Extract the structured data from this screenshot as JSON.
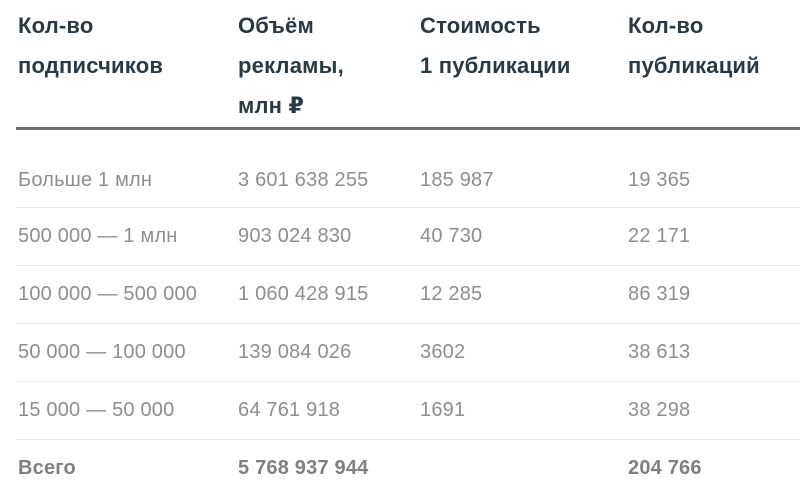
{
  "table": {
    "columns": [
      {
        "label": "Кол-во\nподписчиков"
      },
      {
        "label": "Объём\nрекламы,\nмлн ₽"
      },
      {
        "label": "Стоимость\n1 публикации"
      },
      {
        "label": "Кол-во\nпубликаций"
      }
    ],
    "rows": [
      [
        "Больше 1 млн",
        "3 601 638 255",
        "185 987",
        "19 365"
      ],
      [
        "500 000 — 1 млн",
        "903 024 830",
        "40 730",
        "22 171"
      ],
      [
        "100 000 — 500 000",
        "1 060 428 915",
        "12 285",
        "86 319"
      ],
      [
        "50 000 — 100 000",
        "139 084 026",
        "3602",
        "38 613"
      ],
      [
        "15 000 — 50 000",
        "64 761 918",
        "1691",
        "38 298"
      ]
    ],
    "total": [
      "Всего",
      "5 768 937 944",
      "",
      "204 766"
    ]
  },
  "chart_data": {
    "type": "table",
    "title": "",
    "columns": [
      "Кол-во подписчиков",
      "Объём рекламы, млн ₽",
      "Стоимость 1 публикации",
      "Кол-во публикаций"
    ],
    "rows": [
      {
        "subscribers": "Больше 1 млн",
        "ad_volume": 3601638255,
        "cost_per_publication": 185987,
        "publications": 19365
      },
      {
        "subscribers": "500 000 — 1 млн",
        "ad_volume": 903024830,
        "cost_per_publication": 40730,
        "publications": 22171
      },
      {
        "subscribers": "100 000 — 500 000",
        "ad_volume": 1060428915,
        "cost_per_publication": 12285,
        "publications": 86319
      },
      {
        "subscribers": "50 000 — 100 000",
        "ad_volume": 139084026,
        "cost_per_publication": 3602,
        "publications": 38613
      },
      {
        "subscribers": "15 000 — 50 000",
        "ad_volume": 64761918,
        "cost_per_publication": 1691,
        "publications": 38298
      }
    ],
    "total": {
      "label": "Всего",
      "ad_volume": 5768937944,
      "cost_per_publication": null,
      "publications": 204766
    }
  },
  "colors": {
    "header_text": "#2b3944",
    "data_text": "#8e8e8e",
    "total_text": "#808080",
    "header_rule": "#6d6d6d",
    "row_divider": "#e9e9e9",
    "background": "#ffffff"
  }
}
